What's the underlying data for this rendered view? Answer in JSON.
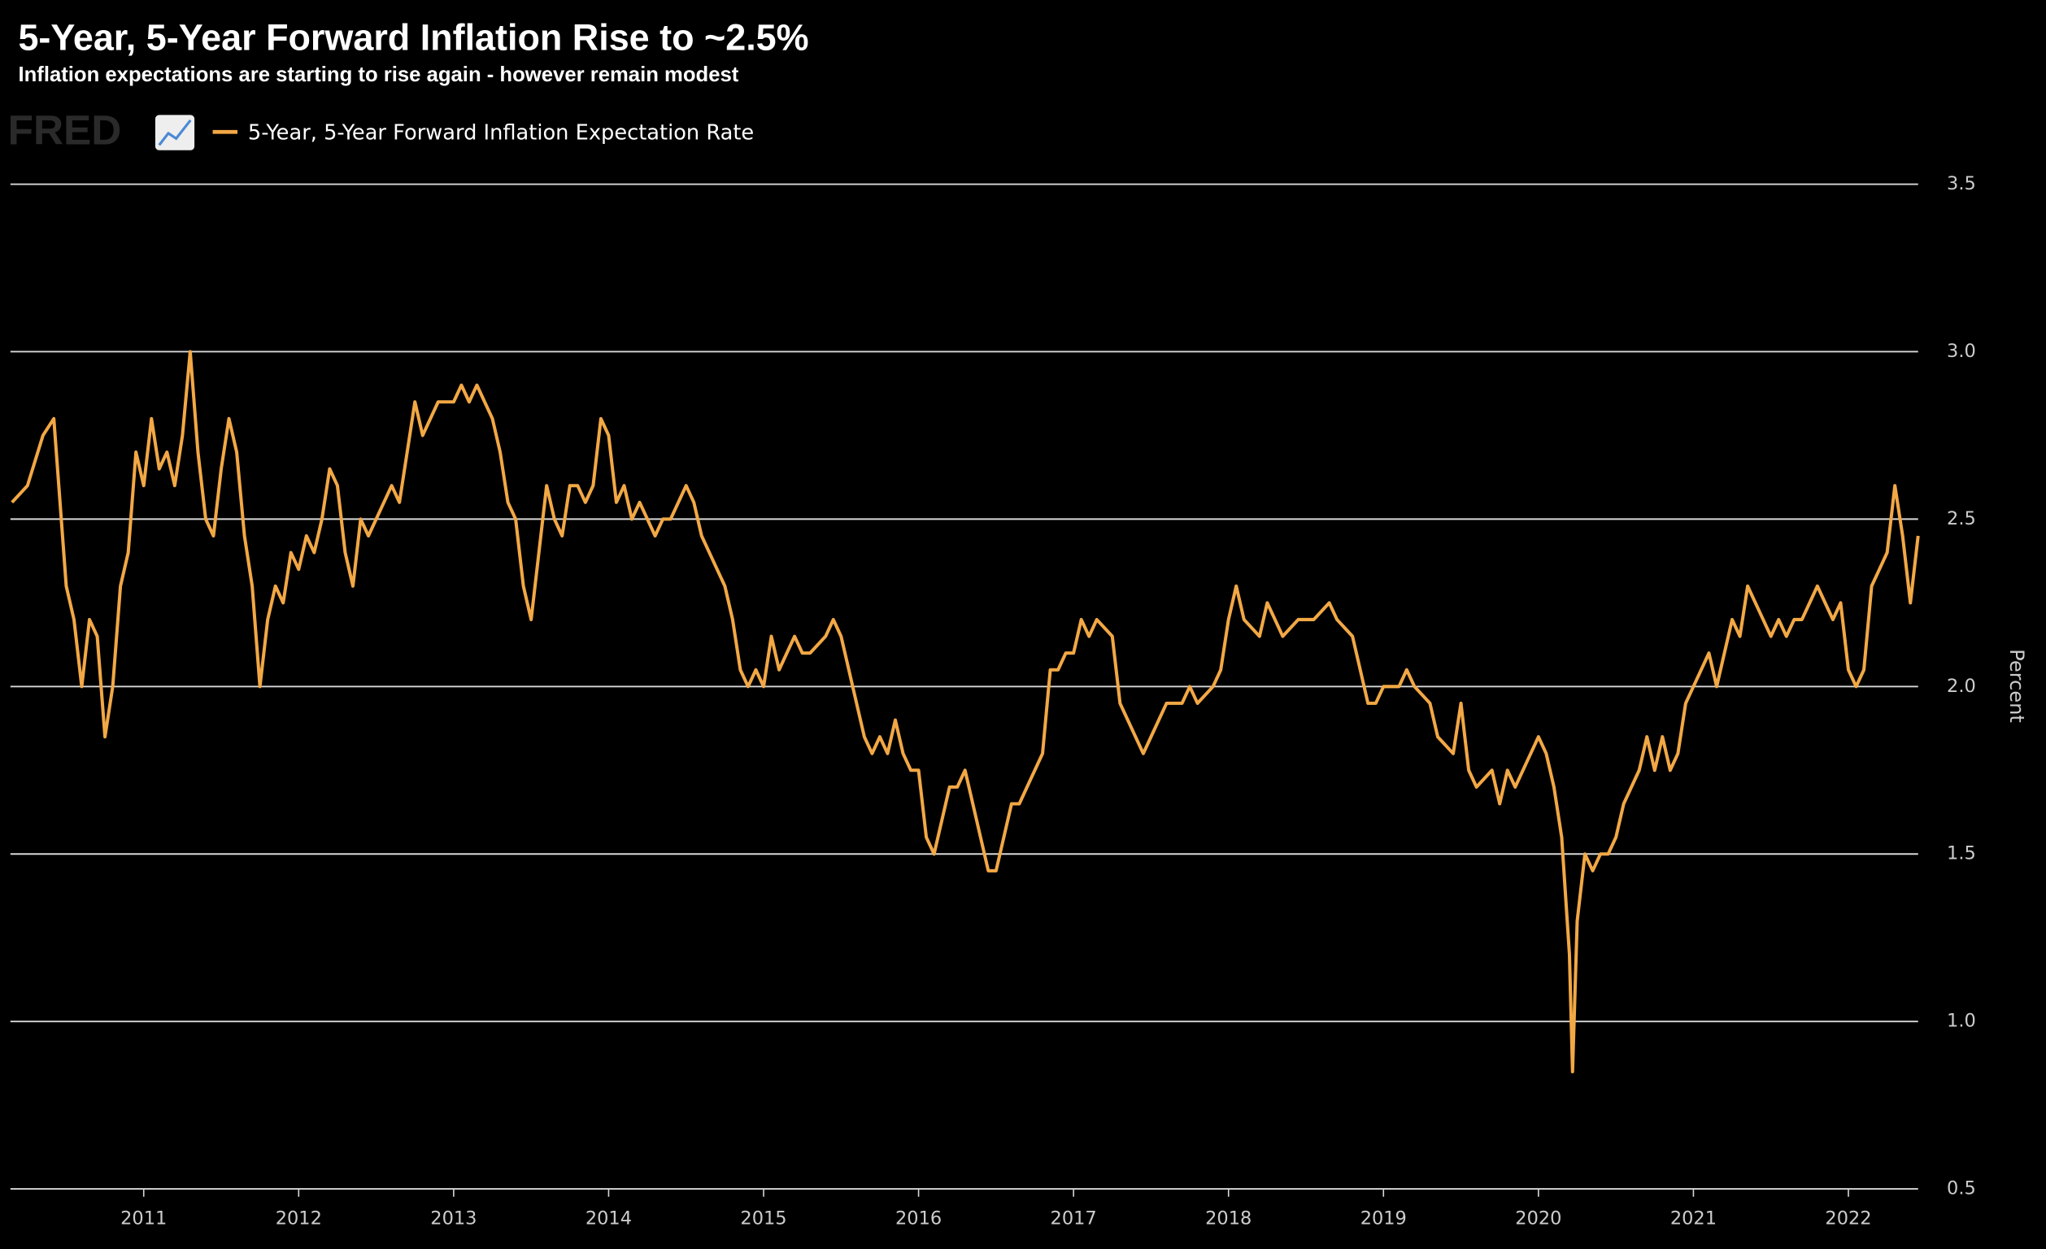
{
  "chart_data": {
    "type": "line",
    "title": "5-Year, 5-Year Forward Inflation Rise to ~2.5%",
    "subtitle": "Inflation expectations are starting to rise again - however remain modest",
    "logo": "FRED",
    "ylabel": "Percent",
    "x": [
      2010.15,
      2010.25,
      2010.35,
      2010.42,
      2010.5,
      2010.55,
      2010.6,
      2010.65,
      2010.7,
      2010.75,
      2010.8,
      2010.85,
      2010.9,
      2010.95,
      2011.0,
      2011.05,
      2011.1,
      2011.15,
      2011.2,
      2011.25,
      2011.3,
      2011.35,
      2011.4,
      2011.45,
      2011.5,
      2011.55,
      2011.6,
      2011.65,
      2011.7,
      2011.75,
      2011.8,
      2011.85,
      2011.9,
      2011.95,
      2012.0,
      2012.05,
      2012.1,
      2012.15,
      2012.2,
      2012.25,
      2012.3,
      2012.35,
      2012.4,
      2012.45,
      2012.5,
      2012.6,
      2012.65,
      2012.7,
      2012.75,
      2012.8,
      2012.9,
      2013.0,
      2013.05,
      2013.1,
      2013.15,
      2013.2,
      2013.25,
      2013.3,
      2013.35,
      2013.4,
      2013.45,
      2013.5,
      2013.55,
      2013.6,
      2013.65,
      2013.7,
      2013.75,
      2013.8,
      2013.85,
      2013.9,
      2013.95,
      2014.0,
      2014.05,
      2014.1,
      2014.15,
      2014.2,
      2014.25,
      2014.3,
      2014.35,
      2014.4,
      2014.45,
      2014.5,
      2014.55,
      2014.6,
      2014.65,
      2014.7,
      2014.75,
      2014.8,
      2014.85,
      2014.9,
      2014.95,
      2015.0,
      2015.05,
      2015.1,
      2015.15,
      2015.2,
      2015.25,
      2015.3,
      2015.4,
      2015.45,
      2015.5,
      2015.55,
      2015.6,
      2015.65,
      2015.7,
      2015.75,
      2015.8,
      2015.85,
      2015.9,
      2015.95,
      2016.0,
      2016.05,
      2016.1,
      2016.15,
      2016.2,
      2016.25,
      2016.3,
      2016.35,
      2016.4,
      2016.45,
      2016.5,
      2016.55,
      2016.6,
      2016.65,
      2016.7,
      2016.75,
      2016.8,
      2016.85,
      2016.9,
      2016.95,
      2017.0,
      2017.05,
      2017.1,
      2017.15,
      2017.25,
      2017.3,
      2017.35,
      2017.4,
      2017.45,
      2017.5,
      2017.55,
      2017.6,
      2017.7,
      2017.75,
      2017.8,
      2017.9,
      2017.95,
      2018.0,
      2018.05,
      2018.1,
      2018.2,
      2018.25,
      2018.3,
      2018.35,
      2018.45,
      2018.55,
      2018.65,
      2018.7,
      2018.8,
      2018.85,
      2018.9,
      2018.95,
      2019.0,
      2019.1,
      2019.15,
      2019.2,
      2019.3,
      2019.35,
      2019.45,
      2019.5,
      2019.55,
      2019.6,
      2019.7,
      2019.75,
      2019.8,
      2019.85,
      2019.95,
      2020.0,
      2020.05,
      2020.1,
      2020.15,
      2020.2,
      2020.22,
      2020.25,
      2020.3,
      2020.35,
      2020.4,
      2020.45,
      2020.5,
      2020.55,
      2020.6,
      2020.65,
      2020.7,
      2020.75,
      2020.8,
      2020.85,
      2020.9,
      2020.95,
      2021.0,
      2021.05,
      2021.1,
      2021.15,
      2021.2,
      2021.25,
      2021.3,
      2021.35,
      2021.4,
      2021.45,
      2021.5,
      2021.55,
      2021.6,
      2021.65,
      2021.7,
      2021.75,
      2021.8,
      2021.85,
      2021.9,
      2021.95,
      2022.0,
      2022.05,
      2022.1,
      2022.15,
      2022.2,
      2022.25,
      2022.3,
      2022.35,
      2022.4,
      2022.45
    ],
    "series": [
      {
        "name": "5-Year, 5-Year Forward Inflation Expectation Rate",
        "color": "#f2a845",
        "values": [
          2.55,
          2.6,
          2.75,
          2.8,
          2.3,
          2.2,
          2.0,
          2.2,
          2.15,
          1.85,
          2.0,
          2.3,
          2.4,
          2.7,
          2.6,
          2.8,
          2.65,
          2.7,
          2.6,
          2.75,
          3.0,
          2.7,
          2.5,
          2.45,
          2.65,
          2.8,
          2.7,
          2.45,
          2.3,
          2.0,
          2.2,
          2.3,
          2.25,
          2.4,
          2.35,
          2.45,
          2.4,
          2.5,
          2.65,
          2.6,
          2.4,
          2.3,
          2.5,
          2.45,
          2.5,
          2.6,
          2.55,
          2.7,
          2.85,
          2.75,
          2.85,
          2.85,
          2.9,
          2.85,
          2.9,
          2.85,
          2.8,
          2.7,
          2.55,
          2.5,
          2.3,
          2.2,
          2.4,
          2.6,
          2.5,
          2.45,
          2.6,
          2.6,
          2.55,
          2.6,
          2.8,
          2.75,
          2.55,
          2.6,
          2.5,
          2.55,
          2.5,
          2.45,
          2.5,
          2.5,
          2.55,
          2.6,
          2.55,
          2.45,
          2.4,
          2.35,
          2.3,
          2.2,
          2.05,
          2.0,
          2.05,
          2.0,
          2.15,
          2.05,
          2.1,
          2.15,
          2.1,
          2.1,
          2.15,
          2.2,
          2.15,
          2.05,
          1.95,
          1.85,
          1.8,
          1.85,
          1.8,
          1.9,
          1.8,
          1.75,
          1.75,
          1.55,
          1.5,
          1.6,
          1.7,
          1.7,
          1.75,
          1.65,
          1.55,
          1.45,
          1.45,
          1.55,
          1.65,
          1.65,
          1.7,
          1.75,
          1.8,
          2.05,
          2.05,
          2.1,
          2.1,
          2.2,
          2.15,
          2.2,
          2.15,
          1.95,
          1.9,
          1.85,
          1.8,
          1.85,
          1.9,
          1.95,
          1.95,
          2.0,
          1.95,
          2.0,
          2.05,
          2.2,
          2.3,
          2.2,
          2.15,
          2.25,
          2.2,
          2.15,
          2.2,
          2.2,
          2.25,
          2.2,
          2.15,
          2.05,
          1.95,
          1.95,
          2.0,
          2.0,
          2.05,
          2.0,
          1.95,
          1.85,
          1.8,
          1.95,
          1.75,
          1.7,
          1.75,
          1.65,
          1.75,
          1.7,
          1.8,
          1.85,
          1.8,
          1.7,
          1.55,
          1.2,
          0.85,
          1.3,
          1.5,
          1.45,
          1.5,
          1.5,
          1.55,
          1.65,
          1.7,
          1.75,
          1.85,
          1.75,
          1.85,
          1.75,
          1.8,
          1.95,
          2.0,
          2.05,
          2.1,
          2.0,
          2.1,
          2.2,
          2.15,
          2.3,
          2.25,
          2.2,
          2.15,
          2.2,
          2.15,
          2.2,
          2.2,
          2.25,
          2.3,
          2.25,
          2.2,
          2.25,
          2.05,
          2.0,
          2.05,
          2.3,
          2.35,
          2.4,
          2.6,
          2.45,
          2.25,
          2.45
        ]
      }
    ],
    "xlim": [
      2010.14,
      2022.45
    ],
    "xticks": [
      2011,
      2012,
      2013,
      2014,
      2015,
      2016,
      2017,
      2018,
      2019,
      2020,
      2021,
      2022
    ],
    "ylim": [
      0.5,
      3.5
    ],
    "yticks": [
      0.5,
      {
        "value": 1,
        "label": "1.0"
      },
      1.5,
      {
        "value": 2,
        "label": "2.0"
      },
      2.5,
      {
        "value": 3,
        "label": "3.0"
      },
      3.5
    ],
    "grid": true
  }
}
